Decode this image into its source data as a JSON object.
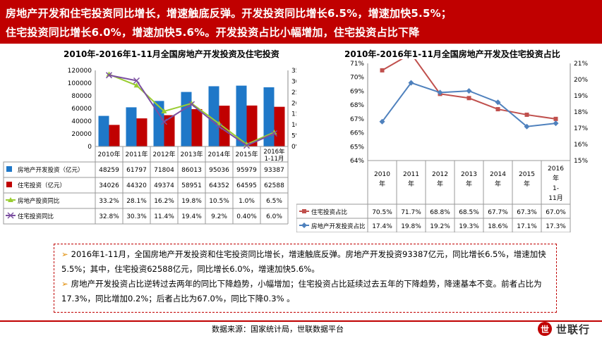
{
  "header": {
    "line1": "房地产开发和住宅投资同比增长，增速触底反弹。开发投资同比增长6.5%，增速加快5.5%；",
    "line2": "住宅投资同比增长6.0%，增速加快5.6%。开发投资占比小幅增加，住宅投资占比下降"
  },
  "chart_data": [
    {
      "type": "bar",
      "title": "2010年-2016年1-11月全国房地产开发投资及住宅投资",
      "categories": [
        "2010年",
        "2011年",
        "2012年",
        "2013年",
        "2014年",
        "2015年",
        "2016年1-11月"
      ],
      "ylim_left": [
        0,
        120000
      ],
      "yticks_left": [
        "0",
        "20000",
        "40000",
        "60000",
        "80000",
        "100000",
        "120000"
      ],
      "ylim_right": [
        0,
        35
      ],
      "yticks_right": [
        "0%",
        "5%",
        "10%",
        "15%",
        "20%",
        "25%",
        "30%",
        "35%"
      ],
      "series": [
        {
          "name": "房地产开发投资（亿元）",
          "kind": "bar",
          "color": "#1f78c8",
          "values": [
            48259,
            61797,
            71804,
            86013,
            95036,
            95979,
            93387
          ],
          "labels": [
            "48259",
            "61797",
            "71804",
            "86013",
            "95036",
            "95979",
            "93387"
          ]
        },
        {
          "name": "住宅投资（亿元）",
          "kind": "bar",
          "color": "#c00000",
          "values": [
            34026,
            44320,
            49374,
            58951,
            64352,
            64595,
            62588
          ],
          "labels": [
            "34026",
            "44320",
            "49374",
            "58951",
            "64352",
            "64595",
            "62588"
          ]
        },
        {
          "name": "房地产投资同比",
          "kind": "line",
          "axis": "right",
          "color": "#9acd32",
          "values": [
            33.2,
            28.1,
            16.2,
            19.8,
            10.5,
            1.0,
            6.5
          ],
          "labels": [
            "33.2%",
            "28.1%",
            "16.2%",
            "19.8%",
            "10.5%",
            "1.0%",
            "6.5%"
          ]
        },
        {
          "name": "住宅投资同比",
          "kind": "line",
          "axis": "right",
          "color": "#7b4fa0",
          "values": [
            32.8,
            30.3,
            11.4,
            19.4,
            9.2,
            0.4,
            6.0
          ],
          "labels": [
            "32.8%",
            "30.3%",
            "11.4%",
            "19.4%",
            "9.2%",
            "0.40%",
            "6.0%"
          ]
        }
      ]
    },
    {
      "type": "line",
      "title": "2010年-2016年1-11月全国房地产开发及住宅投资占比",
      "categories": [
        "2010年",
        "2011年",
        "2012年",
        "2013年",
        "2014年",
        "2015年",
        "2016年1-11月"
      ],
      "ylim_left": [
        64,
        71
      ],
      "yticks_left": [
        "64%",
        "65%",
        "66%",
        "67%",
        "68%",
        "69%",
        "70%",
        "71%"
      ],
      "ylim_right": [
        15,
        21
      ],
      "yticks_right": [
        "15%",
        "16%",
        "17%",
        "18%",
        "19%",
        "20%",
        "21%"
      ],
      "series": [
        {
          "name": "住宅投资占比",
          "axis": "left",
          "color": "#c0504d",
          "values": [
            70.5,
            71.7,
            68.8,
            68.5,
            67.7,
            67.3,
            67.0
          ],
          "labels": [
            "70.5%",
            "71.7%",
            "68.8%",
            "68.5%",
            "67.7%",
            "67.3%",
            "67.0%"
          ]
        },
        {
          "name": "房地产开发投资占比",
          "axis": "right",
          "color": "#4f81bd",
          "values": [
            17.4,
            19.8,
            19.2,
            19.3,
            18.6,
            17.1,
            17.3
          ],
          "labels": [
            "17.4%",
            "19.8%",
            "19.2%",
            "19.3%",
            "18.6%",
            "17.1%",
            "17.3%"
          ]
        }
      ]
    }
  ],
  "summary": {
    "arrow": "➢",
    "para1": "2016年1-11月，全国房地产开发投资和住宅投资同比增长，增速触底反弹。房地产开发投资93387亿元，同比增长6.5%，增速加快5.5%；其中，住宅投资62588亿元，同比增长6.0%，增速加快5.6%。",
    "para2": "房地产开发投资占比逆转过去两年的同比下降趋势，小幅增加；住宅投资占比延续过去五年的下降趋势，降速基本不变。前者占比为17.3%，同比增加0.2%；后者占比为67.0%，同比下降0.3% 。"
  },
  "footer": {
    "source": "数据来源：国家统计局，世联数据平台",
    "logo_mark": "世",
    "logo_text": "世联行"
  },
  "colors": {
    "brand": "#c00000",
    "accent": "#e08a00"
  }
}
